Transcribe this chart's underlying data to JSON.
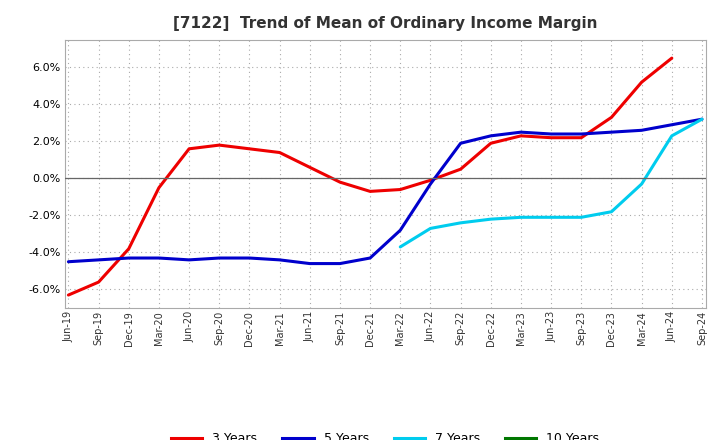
{
  "title": "[7122]  Trend of Mean of Ordinary Income Margin",
  "title_fontsize": 11,
  "title_color": "#333333",
  "background_color": "#ffffff",
  "plot_bg_color": "#ffffff",
  "grid_color": "#aaaaaa",
  "ylim": [
    -0.07,
    0.075
  ],
  "yticks": [
    -0.06,
    -0.04,
    -0.02,
    0.0,
    0.02,
    0.04,
    0.06
  ],
  "x_labels": [
    "Jun-19",
    "Sep-19",
    "Dec-19",
    "Mar-20",
    "Jun-20",
    "Sep-20",
    "Dec-20",
    "Mar-21",
    "Jun-21",
    "Sep-21",
    "Dec-21",
    "Mar-22",
    "Jun-22",
    "Sep-22",
    "Dec-22",
    "Mar-23",
    "Jun-23",
    "Sep-23",
    "Dec-23",
    "Mar-24",
    "Jun-24",
    "Sep-24"
  ],
  "series": {
    "3 Years": {
      "color": "#ee0000",
      "data_x": [
        "Jun-19",
        "Sep-19",
        "Dec-19",
        "Mar-20",
        "Jun-20",
        "Sep-20",
        "Dec-20",
        "Mar-21",
        "Jun-21",
        "Sep-21",
        "Dec-21",
        "Mar-22",
        "Jun-22",
        "Sep-22",
        "Dec-22",
        "Mar-23",
        "Jun-23",
        "Sep-23",
        "Dec-23",
        "Mar-24",
        "Jun-24"
      ],
      "data_y": [
        -0.063,
        -0.056,
        -0.038,
        -0.005,
        0.016,
        0.018,
        0.016,
        0.014,
        0.006,
        -0.002,
        -0.007,
        -0.006,
        -0.001,
        0.005,
        0.019,
        0.023,
        0.022,
        0.022,
        0.033,
        0.052,
        0.065
      ]
    },
    "5 Years": {
      "color": "#0000cc",
      "data_x": [
        "Jun-19",
        "Sep-19",
        "Dec-19",
        "Mar-20",
        "Jun-20",
        "Sep-20",
        "Dec-20",
        "Mar-21",
        "Jun-21",
        "Sep-21",
        "Dec-21",
        "Mar-22",
        "Jun-22",
        "Sep-22",
        "Dec-22",
        "Mar-23",
        "Jun-23",
        "Sep-23",
        "Dec-23",
        "Mar-24",
        "Jun-24",
        "Sep-24"
      ],
      "data_y": [
        -0.045,
        -0.044,
        -0.043,
        -0.043,
        -0.044,
        -0.043,
        -0.043,
        -0.044,
        -0.046,
        -0.046,
        -0.043,
        -0.028,
        -0.003,
        0.019,
        0.023,
        0.025,
        0.024,
        0.024,
        0.025,
        0.026,
        0.029,
        0.032
      ]
    },
    "7 Years": {
      "color": "#00ccee",
      "data_x": [
        "Mar-22",
        "Jun-22",
        "Sep-22",
        "Dec-22",
        "Mar-23",
        "Jun-23",
        "Sep-23",
        "Dec-23",
        "Mar-24",
        "Jun-24",
        "Sep-24"
      ],
      "data_y": [
        -0.037,
        -0.027,
        -0.024,
        -0.022,
        -0.021,
        -0.021,
        -0.021,
        -0.018,
        -0.003,
        0.023,
        0.032
      ]
    },
    "10 Years": {
      "color": "#007700",
      "data_x": [],
      "data_y": []
    }
  },
  "legend_labels": [
    "3 Years",
    "5 Years",
    "7 Years",
    "10 Years"
  ],
  "legend_colors": [
    "#ee0000",
    "#0000cc",
    "#00ccee",
    "#007700"
  ],
  "linewidth": 2.2
}
